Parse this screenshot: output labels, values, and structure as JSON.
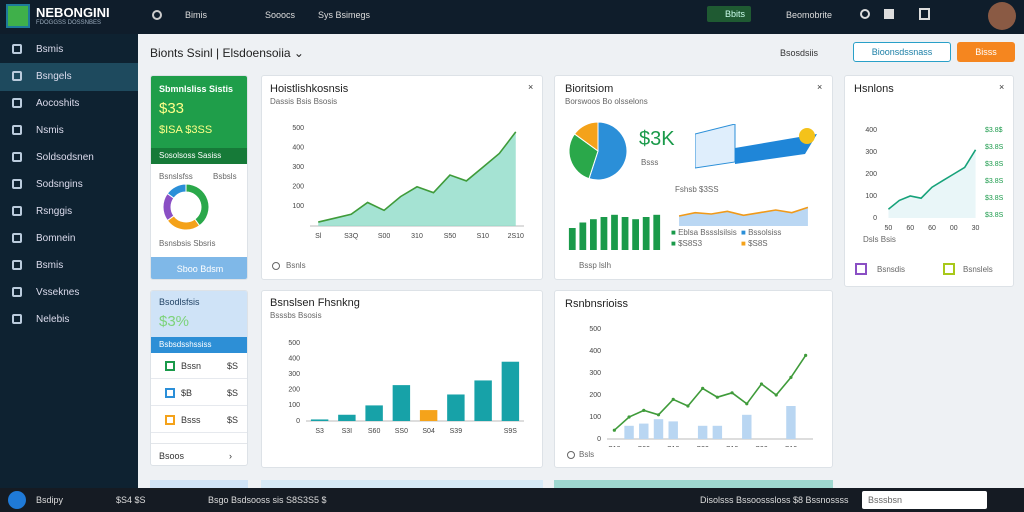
{
  "topbar": {
    "logo": "NEBONGINI",
    "logo_sub": "FDOGGSS DOSSNBES",
    "nav": [
      "Bimis",
      "Sooocs",
      "Sys Bsimegs"
    ],
    "badge": "Bbits",
    "user": "Beomobrite"
  },
  "sidebar": {
    "items": [
      "Bsmis",
      "Bsngels",
      "Aocoshits",
      "Nsmis",
      "Soldsodsnen",
      "Sodsngins",
      "Rsnggis",
      "Bomnein",
      "Bsmis",
      "Vsseknes",
      "Nelebis"
    ],
    "active": 1
  },
  "header": {
    "title": "Bionts Ssinl",
    "subtitle": "Elsdoensoiia",
    "link": "Bsosdsiis",
    "button1": "Bioonsdssnass",
    "button2": "Bisss"
  },
  "cards": {
    "green": {
      "title": "Sbmnlsliss Sistis",
      "value": "$33",
      "sub": "$ISA $3SS",
      "strip": "Sosolsoss Sasiss",
      "label1": "Bsnslsfss",
      "label2": "Bsbsls",
      "caption": "Bsnsbsis Sbsris",
      "button": "Sboo Bdsm"
    },
    "trend": {
      "title": "Hoistlishkosnsis",
      "subtitle": "Dassis Bsis Bsosis",
      "footer": "Bsnls"
    },
    "pie": {
      "title": "Bioritsiom",
      "subtitle": "Borswoos Bo olsselons",
      "value": "$3K",
      "value_sub": "Bsss",
      "caption": "Fshsb $3SS",
      "legend": [
        "Eblsa Bssslsilsis",
        "Bssolsiss",
        "$S8S3",
        "$S8S"
      ],
      "footer": "Bssp lslh"
    },
    "right": {
      "title": "Hsnlons",
      "footer": "Dsls Bsis",
      "item1": "Bsnsdis",
      "item2": "Bsnslels",
      "right_labels": [
        "$3.8$",
        "$3.8S",
        "$3.8S",
        "$3.8S",
        "$3.8S",
        "$3.8S"
      ]
    },
    "blue": {
      "title": "Bsodlsfsis",
      "value": "$3%",
      "strip": "Bsbsdsshssiss",
      "rows": [
        [
          "Bssn",
          "$S"
        ],
        [
          "$B",
          "$S"
        ],
        [
          "Bsss",
          "$S"
        ]
      ],
      "footer": "Bsoos"
    },
    "bars": {
      "title": "Bsnslsen Fhsnkng",
      "subtitle": "Bsssbs Bsosis"
    },
    "combo": {
      "title": "Rsnbnsrioiss",
      "footer": "Bsls"
    }
  },
  "charts": {
    "trend": {
      "type": "area",
      "categories": [
        "Sl",
        null,
        "S3Q",
        null,
        "S00",
        null,
        "310",
        null,
        "S50",
        null,
        "S10",
        null,
        "2S10"
      ],
      "ylim": [
        0,
        500
      ],
      "yticks": [
        100,
        200,
        300,
        400,
        500
      ],
      "grid": false,
      "series": [
        {
          "kind": "area",
          "color": "#3f9b3a",
          "fill": "#8fdcc8",
          "values": [
            20,
            40,
            60,
            120,
            80,
            150,
            200,
            170,
            260,
            230,
            300,
            370,
            480
          ]
        }
      ]
    },
    "bars": {
      "type": "bar",
      "categories": [
        "S3",
        "S3I",
        "S60",
        "SS0",
        "S04",
        "S39",
        null,
        "S9S"
      ],
      "ylim": [
        0,
        500
      ],
      "yticks": [
        0,
        100,
        200,
        300,
        400,
        500
      ],
      "grid": false,
      "series": [
        {
          "kind": "bar",
          "colors": [
            "#17a2a8",
            "#17a2a8",
            "#17a2a8",
            "#17a2a8",
            "#f5a31a",
            "#17a2a8",
            "#17a2a8",
            "#17a2a8"
          ],
          "values": [
            10,
            40,
            100,
            230,
            70,
            170,
            260,
            380
          ]
        }
      ]
    },
    "combo": {
      "type": "combo",
      "categories": [
        "S10",
        null,
        "S00",
        null,
        "S10",
        null,
        "S30",
        null,
        "S10",
        null,
        "S00",
        null,
        "S10",
        null
      ],
      "ylim": [
        0,
        500
      ],
      "yticks": [
        0,
        100,
        200,
        300,
        400,
        500
      ],
      "grid": false,
      "series": [
        {
          "kind": "bar",
          "color": "#b9d6f2",
          "values": [
            null,
            60,
            70,
            90,
            80,
            null,
            60,
            60,
            null,
            110,
            null,
            null,
            150,
            null
          ]
        },
        {
          "kind": "line",
          "color": "#3f9b3a",
          "values": [
            40,
            100,
            130,
            110,
            180,
            150,
            230,
            190,
            210,
            160,
            250,
            200,
            280,
            380
          ]
        }
      ]
    },
    "mini": {
      "type": "area",
      "categories": [
        "50",
        null,
        "60",
        null,
        "60",
        null,
        "00",
        null,
        "30"
      ],
      "ylim": [
        0,
        400
      ],
      "yticks": [
        0,
        100,
        200,
        300,
        400
      ],
      "grid": false,
      "series": [
        {
          "kind": "area",
          "color": "#17a27a",
          "fill": "#e3f4f6",
          "values": [
            40,
            80,
            100,
            90,
            140,
            170,
            200,
            230,
            310
          ]
        }
      ]
    },
    "sparkbars": {
      "type": "bar",
      "ylim": [
        0,
        40
      ],
      "grid": false,
      "series": [
        {
          "kind": "bar",
          "color": "#1a9a4a",
          "values": [
            20,
            25,
            28,
            30,
            32,
            30,
            28,
            30,
            32
          ]
        }
      ]
    },
    "sparkline": {
      "type": "area",
      "ylim": [
        0,
        30
      ],
      "grid": false,
      "series": [
        {
          "kind": "area",
          "color": "#f09a1a",
          "fill": "#a9cdf0",
          "values": [
            15,
            20,
            18,
            22,
            16,
            20,
            24,
            20,
            28
          ]
        }
      ]
    },
    "pie": {
      "type": "pie",
      "values": [
        55,
        30,
        15
      ],
      "colors": [
        "#2b8fd8",
        "#2aa84a",
        "#f4a21a"
      ]
    },
    "donut": {
      "type": "donut",
      "values": [
        40,
        25,
        20,
        15
      ],
      "colors": [
        "#2aa84a",
        "#f4a21a",
        "#8a4fc4",
        "#2b8fd8"
      ]
    }
  },
  "taskbar": {
    "items": [
      "Bsdipy",
      "$S4 $S",
      "Bsgo Bsdsooss sis S8S3S5 $",
      "Disolsss Bssoosssloss $8 Bssnossss"
    ],
    "search": "Bsssbsn"
  }
}
